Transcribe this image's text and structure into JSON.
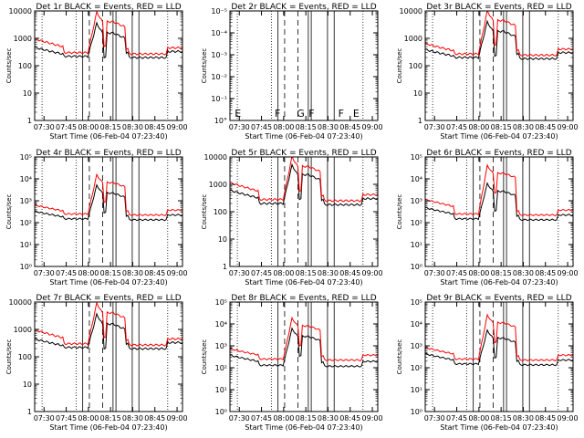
{
  "figure": {
    "time_ticks": [
      "07:30",
      "07:45",
      "08:00",
      "08:15",
      "08:30",
      "08:45",
      "09:00"
    ],
    "xlabel": "Start Time (06-Feb-04 07:23:40)",
    "ylabel": "Counts/sec",
    "colors": {
      "events": "#000000",
      "lld": "#ff0000"
    }
  },
  "chart_data": [
    {
      "type": "line",
      "title": "Det 1r BLACK = Events, RED = LLD",
      "ylabel": "Counts/sec",
      "ylog": true,
      "ylim": [
        1,
        10000
      ],
      "ytick_labels": [
        "1",
        "10",
        "100",
        "1000",
        "10000"
      ],
      "flare_letters": [],
      "series": [
        {
          "name": "Events",
          "color": "#000000",
          "peak": 3500,
          "base": 220,
          "pre": 350
        },
        {
          "name": "LLD",
          "color": "#ff0000",
          "peak": 9000,
          "base": 300,
          "pre": 800
        }
      ]
    },
    {
      "type": "line",
      "title": "Det 2r BLACK = Events, RED = LLD",
      "ylabel": "Counts/sec",
      "ylog": true,
      "ylim": [
        1,
        1e-05
      ],
      "ytick_labels": [
        "10°",
        "10⁻¹",
        "10⁻²",
        "10⁻³",
        "10⁻⁴",
        "10⁻⁵"
      ],
      "flare_letters": [
        "E",
        "F",
        "G",
        "F",
        "F",
        "E"
      ],
      "series": []
    },
    {
      "type": "line",
      "title": "Det 3r BLACK = Events, RED = LLD",
      "ylabel": "Counts/sec",
      "ylog": true,
      "ylim": [
        1,
        10000
      ],
      "ytick_labels": [
        "1",
        "10",
        "100",
        "1000",
        "10000"
      ],
      "flare_letters": [],
      "series": [
        {
          "name": "Events",
          "color": "#000000",
          "peak": 4000,
          "base": 200,
          "pre": 280
        },
        {
          "name": "LLD",
          "color": "#ff0000",
          "peak": 10000,
          "base": 270,
          "pre": 500
        }
      ]
    },
    {
      "type": "line",
      "title": "Det 4r BLACK = Events, RED = LLD",
      "ylabel": "Counts/sec",
      "ylog": true,
      "ylim": [
        1,
        100000
      ],
      "ytick_labels": [
        "10⁰",
        "10¹",
        "10²",
        "10³",
        "10⁴",
        "10⁵"
      ],
      "flare_letters": [],
      "series": [
        {
          "name": "Events",
          "color": "#000000",
          "peak": 5000,
          "base": 150,
          "pre": 250
        },
        {
          "name": "LLD",
          "color": "#ff0000",
          "peak": 15000,
          "base": 250,
          "pre": 500
        }
      ]
    },
    {
      "type": "line",
      "title": "Det 5r BLACK = Events, RED = LLD",
      "ylabel": "Counts/sec",
      "ylog": true,
      "ylim": [
        1,
        10000
      ],
      "ytick_labels": [
        "1",
        "10",
        "100",
        "1000",
        "10000"
      ],
      "flare_letters": [],
      "series": [
        {
          "name": "Events",
          "color": "#000000",
          "peak": 5000,
          "base": 200,
          "pre": 500
        },
        {
          "name": "LLD",
          "color": "#ff0000",
          "peak": 10000,
          "base": 280,
          "pre": 1000
        }
      ]
    },
    {
      "type": "line",
      "title": "Det 6r BLACK = Events, RED = LLD",
      "ylabel": "Counts/sec",
      "ylog": true,
      "ylim": [
        1,
        100000
      ],
      "ytick_labels": [
        "10⁰",
        "10¹",
        "10²",
        "10³",
        "10⁴",
        "10⁵"
      ],
      "flare_letters": [],
      "series": [
        {
          "name": "Events",
          "color": "#000000",
          "peak": 6000,
          "base": 150,
          "pre": 400
        },
        {
          "name": "LLD",
          "color": "#ff0000",
          "peak": 40000,
          "base": 250,
          "pre": 1000
        }
      ]
    },
    {
      "type": "line",
      "title": "Det 7r BLACK = Events, RED = LLD",
      "ylabel": "Counts/sec",
      "ylog": true,
      "ylim": [
        1,
        10000
      ],
      "ytick_labels": [
        "1",
        "10",
        "100",
        "1000",
        "10000"
      ],
      "flare_letters": [],
      "series": [
        {
          "name": "Events",
          "color": "#000000",
          "peak": 3500,
          "base": 220,
          "pre": 330
        },
        {
          "name": "LLD",
          "color": "#ff0000",
          "peak": 9000,
          "base": 300,
          "pre": 800
        }
      ]
    },
    {
      "type": "line",
      "title": "Det 8r BLACK = Events, RED = LLD",
      "ylabel": "Counts/sec",
      "ylog": true,
      "ylim": [
        1,
        100000
      ],
      "ytick_labels": [
        "10⁰",
        "10¹",
        "10²",
        "10³",
        "10⁴",
        "10⁵"
      ],
      "flare_letters": [],
      "series": [
        {
          "name": "Events",
          "color": "#000000",
          "peak": 6000,
          "base": 130,
          "pre": 300
        },
        {
          "name": "LLD",
          "color": "#ff0000",
          "peak": 18000,
          "base": 250,
          "pre": 600
        }
      ]
    },
    {
      "type": "line",
      "title": "Det 9r BLACK = Events, RED = LLD",
      "ylabel": "Counts/sec",
      "ylog": true,
      "ylim": [
        1,
        100000
      ],
      "ytick_labels": [
        "10⁰",
        "10¹",
        "10²",
        "10³",
        "10⁴",
        "10⁵"
      ],
      "flare_letters": [],
      "series": [
        {
          "name": "Events",
          "color": "#000000",
          "peak": 5000,
          "base": 150,
          "pre": 350
        },
        {
          "name": "LLD",
          "color": "#ff0000",
          "peak": 25000,
          "base": 250,
          "pre": 700
        }
      ]
    }
  ]
}
